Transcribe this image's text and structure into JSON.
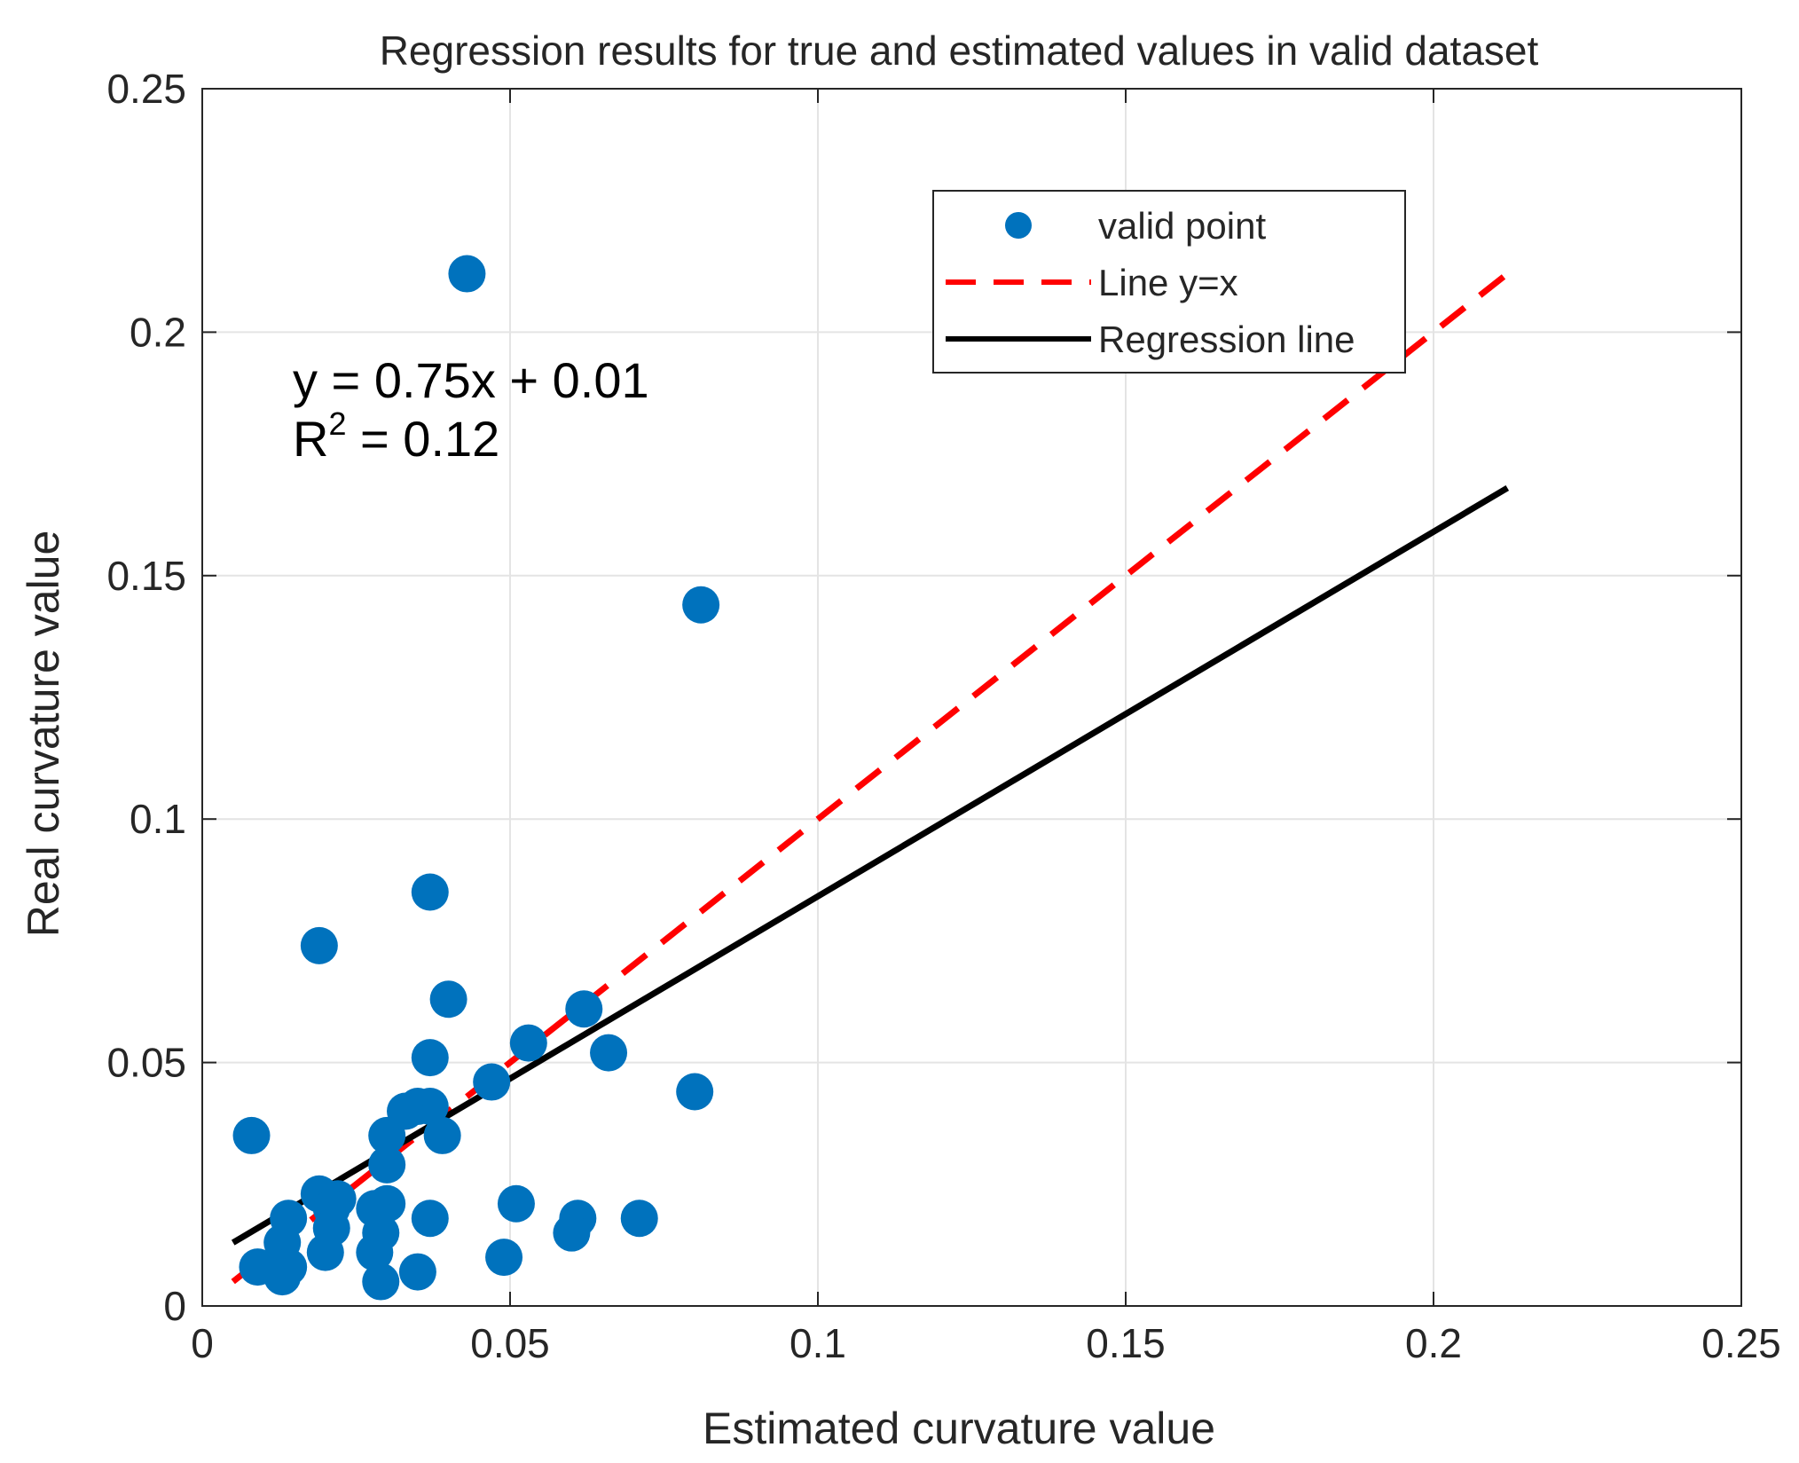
{
  "chart_data": {
    "type": "scatter",
    "title": "Regression results for true and estimated values in valid dataset",
    "xlabel": "Estimated curvature value",
    "ylabel": "Real curvature value",
    "xlim": [
      0,
      0.25
    ],
    "ylim": [
      0,
      0.25
    ],
    "xticks": [
      "0",
      "0.05",
      "0.1",
      "0.15",
      "0.2",
      "0.25"
    ],
    "yticks": [
      "0",
      "0.05",
      "0.1",
      "0.15",
      "0.2",
      "0.25"
    ],
    "grid": true,
    "legend_position": "top-right",
    "annotation": {
      "equation": "y = 0.75x + 0.01",
      "r2_label": "R",
      "r2_sup": "2",
      "r2_value": " = 0.12"
    },
    "series": [
      {
        "name": "valid point",
        "kind": "scatter",
        "color": "#0072BD",
        "points": [
          [
            0.043,
            0.212
          ],
          [
            0.081,
            0.144
          ],
          [
            0.037,
            0.085
          ],
          [
            0.019,
            0.074
          ],
          [
            0.04,
            0.063
          ],
          [
            0.062,
            0.061
          ],
          [
            0.053,
            0.054
          ],
          [
            0.066,
            0.052
          ],
          [
            0.037,
            0.051
          ],
          [
            0.047,
            0.046
          ],
          [
            0.08,
            0.044
          ],
          [
            0.037,
            0.041
          ],
          [
            0.035,
            0.041
          ],
          [
            0.033,
            0.04
          ],
          [
            0.008,
            0.035
          ],
          [
            0.03,
            0.035
          ],
          [
            0.039,
            0.035
          ],
          [
            0.03,
            0.029
          ],
          [
            0.019,
            0.023
          ],
          [
            0.022,
            0.022
          ],
          [
            0.03,
            0.021
          ],
          [
            0.051,
            0.021
          ],
          [
            0.021,
            0.02
          ],
          [
            0.028,
            0.02
          ],
          [
            0.014,
            0.018
          ],
          [
            0.037,
            0.018
          ],
          [
            0.061,
            0.018
          ],
          [
            0.071,
            0.018
          ],
          [
            0.021,
            0.016
          ],
          [
            0.06,
            0.015
          ],
          [
            0.029,
            0.015
          ],
          [
            0.013,
            0.013
          ],
          [
            0.02,
            0.011
          ],
          [
            0.028,
            0.011
          ],
          [
            0.049,
            0.01
          ],
          [
            0.009,
            0.008
          ],
          [
            0.014,
            0.008
          ],
          [
            0.035,
            0.007
          ],
          [
            0.013,
            0.006
          ],
          [
            0.029,
            0.005
          ]
        ]
      },
      {
        "name": "Line y=x",
        "kind": "line",
        "style": "dashed",
        "color": "#FF0000",
        "x": [
          0.005,
          0.212
        ],
        "y": [
          0.005,
          0.212
        ]
      },
      {
        "name": "Regression line",
        "kind": "line",
        "style": "solid",
        "color": "#000000",
        "x": [
          0.005,
          0.212
        ],
        "y": [
          0.013,
          0.168
        ]
      }
    ]
  }
}
